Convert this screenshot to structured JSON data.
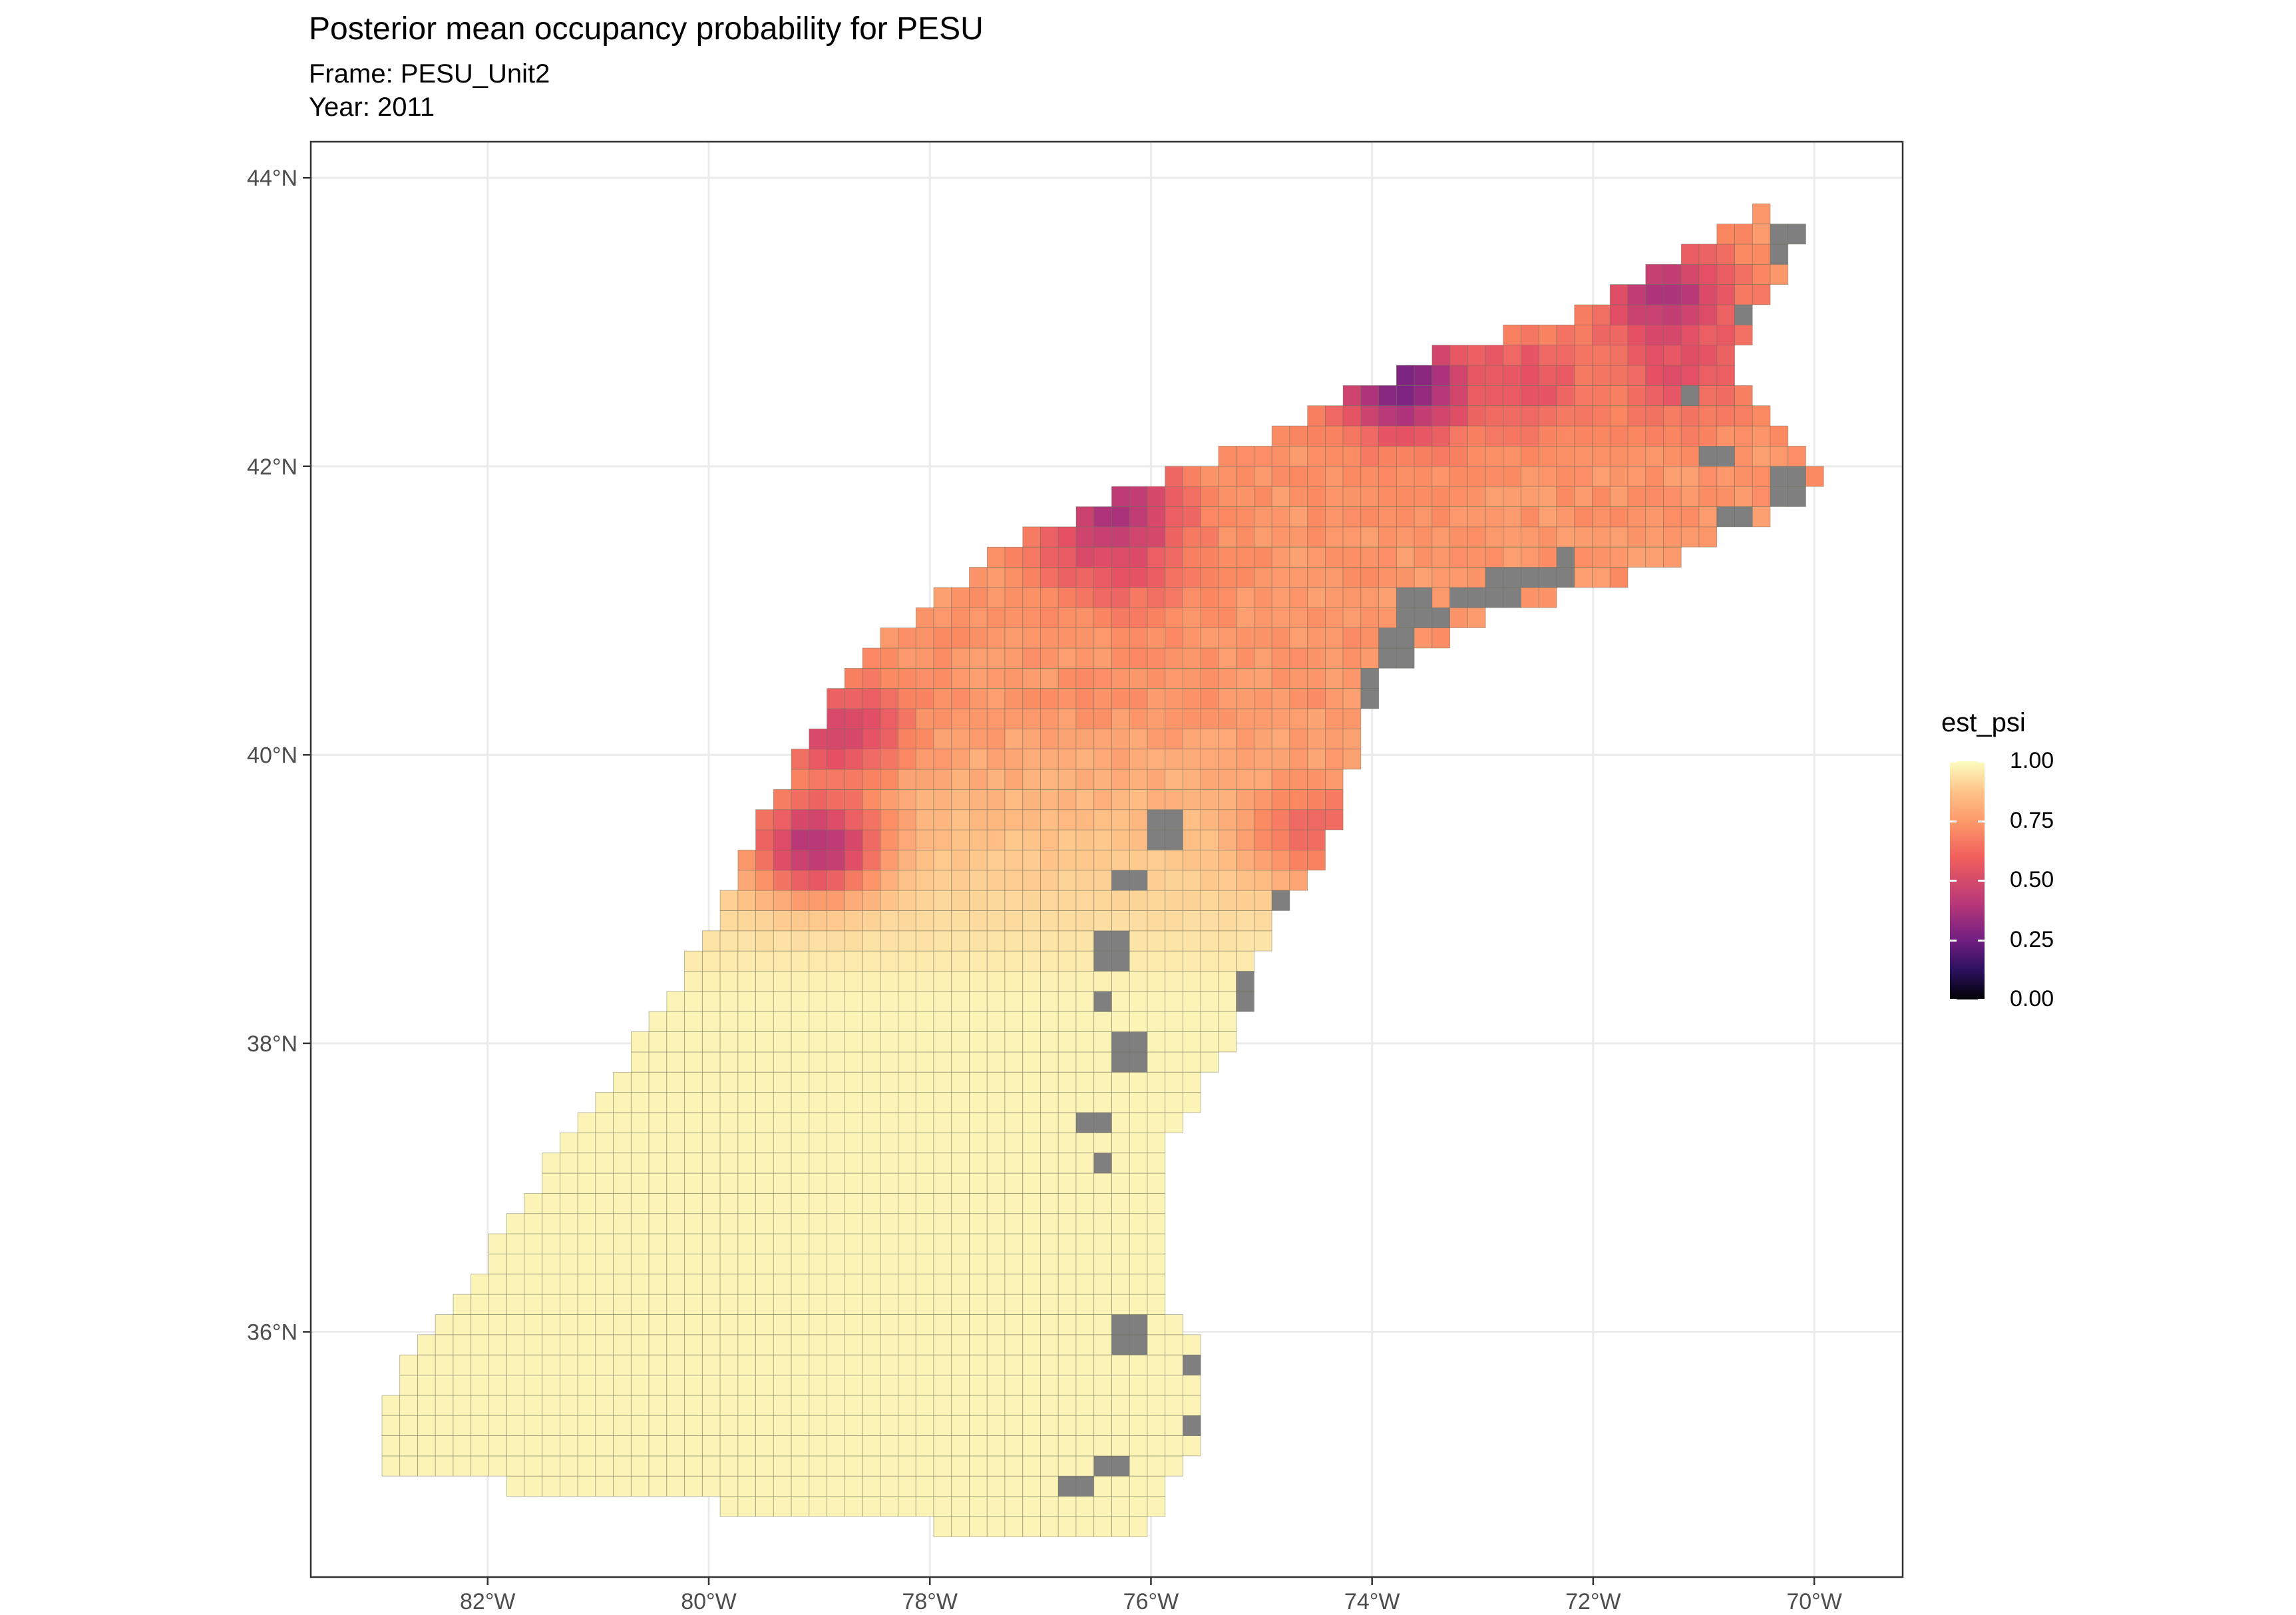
{
  "title": "Posterior mean occupancy probability for PESU",
  "subtitle": {
    "frame": "Frame: PESU_Unit2",
    "year": "Year: 2011"
  },
  "axes": {
    "x_ticks": [
      "82°W",
      "80°W",
      "78°W",
      "76°W",
      "74°W",
      "72°W",
      "70°W"
    ],
    "y_ticks": [
      "44°N",
      "42°N",
      "40°N",
      "38°N",
      "36°N"
    ]
  },
  "legend": {
    "title": "est_psi",
    "labels": [
      "1.00",
      "0.75",
      "0.50",
      "0.25",
      "0.00"
    ]
  },
  "colors": {
    "missing": "#7f7f7f",
    "cell_border": "#6b6b5a",
    "scale": [
      "#000004",
      "#3b0f70",
      "#8c2981",
      "#de4968",
      "#fe9f6d",
      "#fcfdbf"
    ]
  },
  "chart_data": {
    "type": "heatmap",
    "title": "Posterior mean occupancy probability for PESU",
    "xlabel": "",
    "ylabel": "",
    "xlim": [
      -83.6,
      -69.2
    ],
    "ylim": [
      34.3,
      44.25
    ],
    "value_name": "est_psi",
    "value_range": [
      0,
      1
    ],
    "region_polygon": [
      [
        -83.0,
        35.05
      ],
      [
        -82.0,
        34.95
      ],
      [
        -81.0,
        34.85
      ],
      [
        -80.0,
        34.8
      ],
      [
        -78.5,
        34.7
      ],
      [
        -77.0,
        34.55
      ],
      [
        -76.1,
        34.55
      ],
      [
        -75.6,
        35.2
      ],
      [
        -75.6,
        35.9
      ],
      [
        -75.95,
        36.2
      ],
      [
        -75.95,
        37.1
      ],
      [
        -75.65,
        37.5
      ],
      [
        -75.2,
        38.1
      ],
      [
        -74.9,
        38.9
      ],
      [
        -74.4,
        39.35
      ],
      [
        -73.95,
        40.5
      ],
      [
        -73.0,
        40.95
      ],
      [
        -71.8,
        41.2
      ],
      [
        -71.0,
        41.45
      ],
      [
        -70.2,
        41.7
      ],
      [
        -69.95,
        41.95
      ],
      [
        -70.4,
        42.3
      ],
      [
        -70.75,
        42.6
      ],
      [
        -70.5,
        43.1
      ],
      [
        -70.1,
        43.6
      ],
      [
        -70.4,
        43.8
      ],
      [
        -71.2,
        43.5
      ],
      [
        -72.0,
        43.1
      ],
      [
        -73.0,
        42.85
      ],
      [
        -73.5,
        42.75
      ],
      [
        -74.3,
        42.45
      ],
      [
        -75.0,
        42.2
      ],
      [
        -76.0,
        41.9
      ],
      [
        -76.9,
        41.6
      ],
      [
        -77.6,
        41.3
      ],
      [
        -78.2,
        40.95
      ],
      [
        -78.7,
        40.6
      ],
      [
        -79.2,
        40.0
      ],
      [
        -79.5,
        39.6
      ],
      [
        -79.7,
        39.2
      ],
      [
        -80.3,
        38.4
      ],
      [
        -81.0,
        37.6
      ],
      [
        -81.6,
        37.0
      ],
      [
        -82.3,
        36.2
      ],
      [
        -83.0,
        35.5
      ]
    ],
    "low_occupancy_hotspots": [
      {
        "lon": -73.8,
        "lat": 42.5,
        "min_psi": 0.3
      },
      {
        "lon": -71.4,
        "lat": 43.1,
        "min_psi": 0.45
      },
      {
        "lon": -76.4,
        "lat": 41.6,
        "min_psi": 0.45
      },
      {
        "lon": -79.1,
        "lat": 39.3,
        "min_psi": 0.45
      },
      {
        "lon": -78.9,
        "lat": 40.1,
        "min_psi": 0.55
      },
      {
        "lon": -76.4,
        "lat": 41.3,
        "min_psi": 0.6
      },
      {
        "lon": -74.6,
        "lat": 39.4,
        "min_psi": 0.65
      },
      {
        "lon": -71.3,
        "lat": 42.6,
        "min_psi": 0.6
      },
      {
        "lon": -72.7,
        "lat": 42.5,
        "min_psi": 0.6
      }
    ],
    "background_psi_south": 0.98,
    "missing_cells": [
      [
        -73.7,
        40.95
      ],
      [
        -73.5,
        40.9
      ],
      [
        -73.3,
        41.0
      ],
      [
        -73.1,
        41.05
      ],
      [
        -72.9,
        41.1
      ],
      [
        -72.7,
        41.15
      ],
      [
        -72.5,
        41.2
      ],
      [
        -72.3,
        41.25
      ],
      [
        -73.9,
        40.7
      ],
      [
        -74.0,
        40.4
      ],
      [
        -74.1,
        40.1
      ],
      [
        -76.0,
        39.4
      ],
      [
        -76.3,
        39.1
      ],
      [
        -76.4,
        38.6
      ],
      [
        -76.5,
        38.2
      ],
      [
        -76.3,
        37.9
      ],
      [
        -76.6,
        37.4
      ],
      [
        -76.5,
        37.1
      ],
      [
        -75.9,
        36.6
      ],
      [
        -75.8,
        36.3
      ],
      [
        -76.3,
        35.9
      ],
      [
        -75.6,
        35.7
      ],
      [
        -75.6,
        35.3
      ],
      [
        -76.4,
        35.0
      ],
      [
        -76.8,
        34.85
      ],
      [
        -74.9,
        38.9
      ],
      [
        -75.2,
        38.3
      ],
      [
        -71.2,
        42.4
      ],
      [
        -71.0,
        42.0
      ],
      [
        -70.8,
        41.6
      ],
      [
        -70.3,
        41.8
      ],
      [
        -70.35,
        43.5
      ],
      [
        -70.6,
        43.0
      ]
    ]
  }
}
